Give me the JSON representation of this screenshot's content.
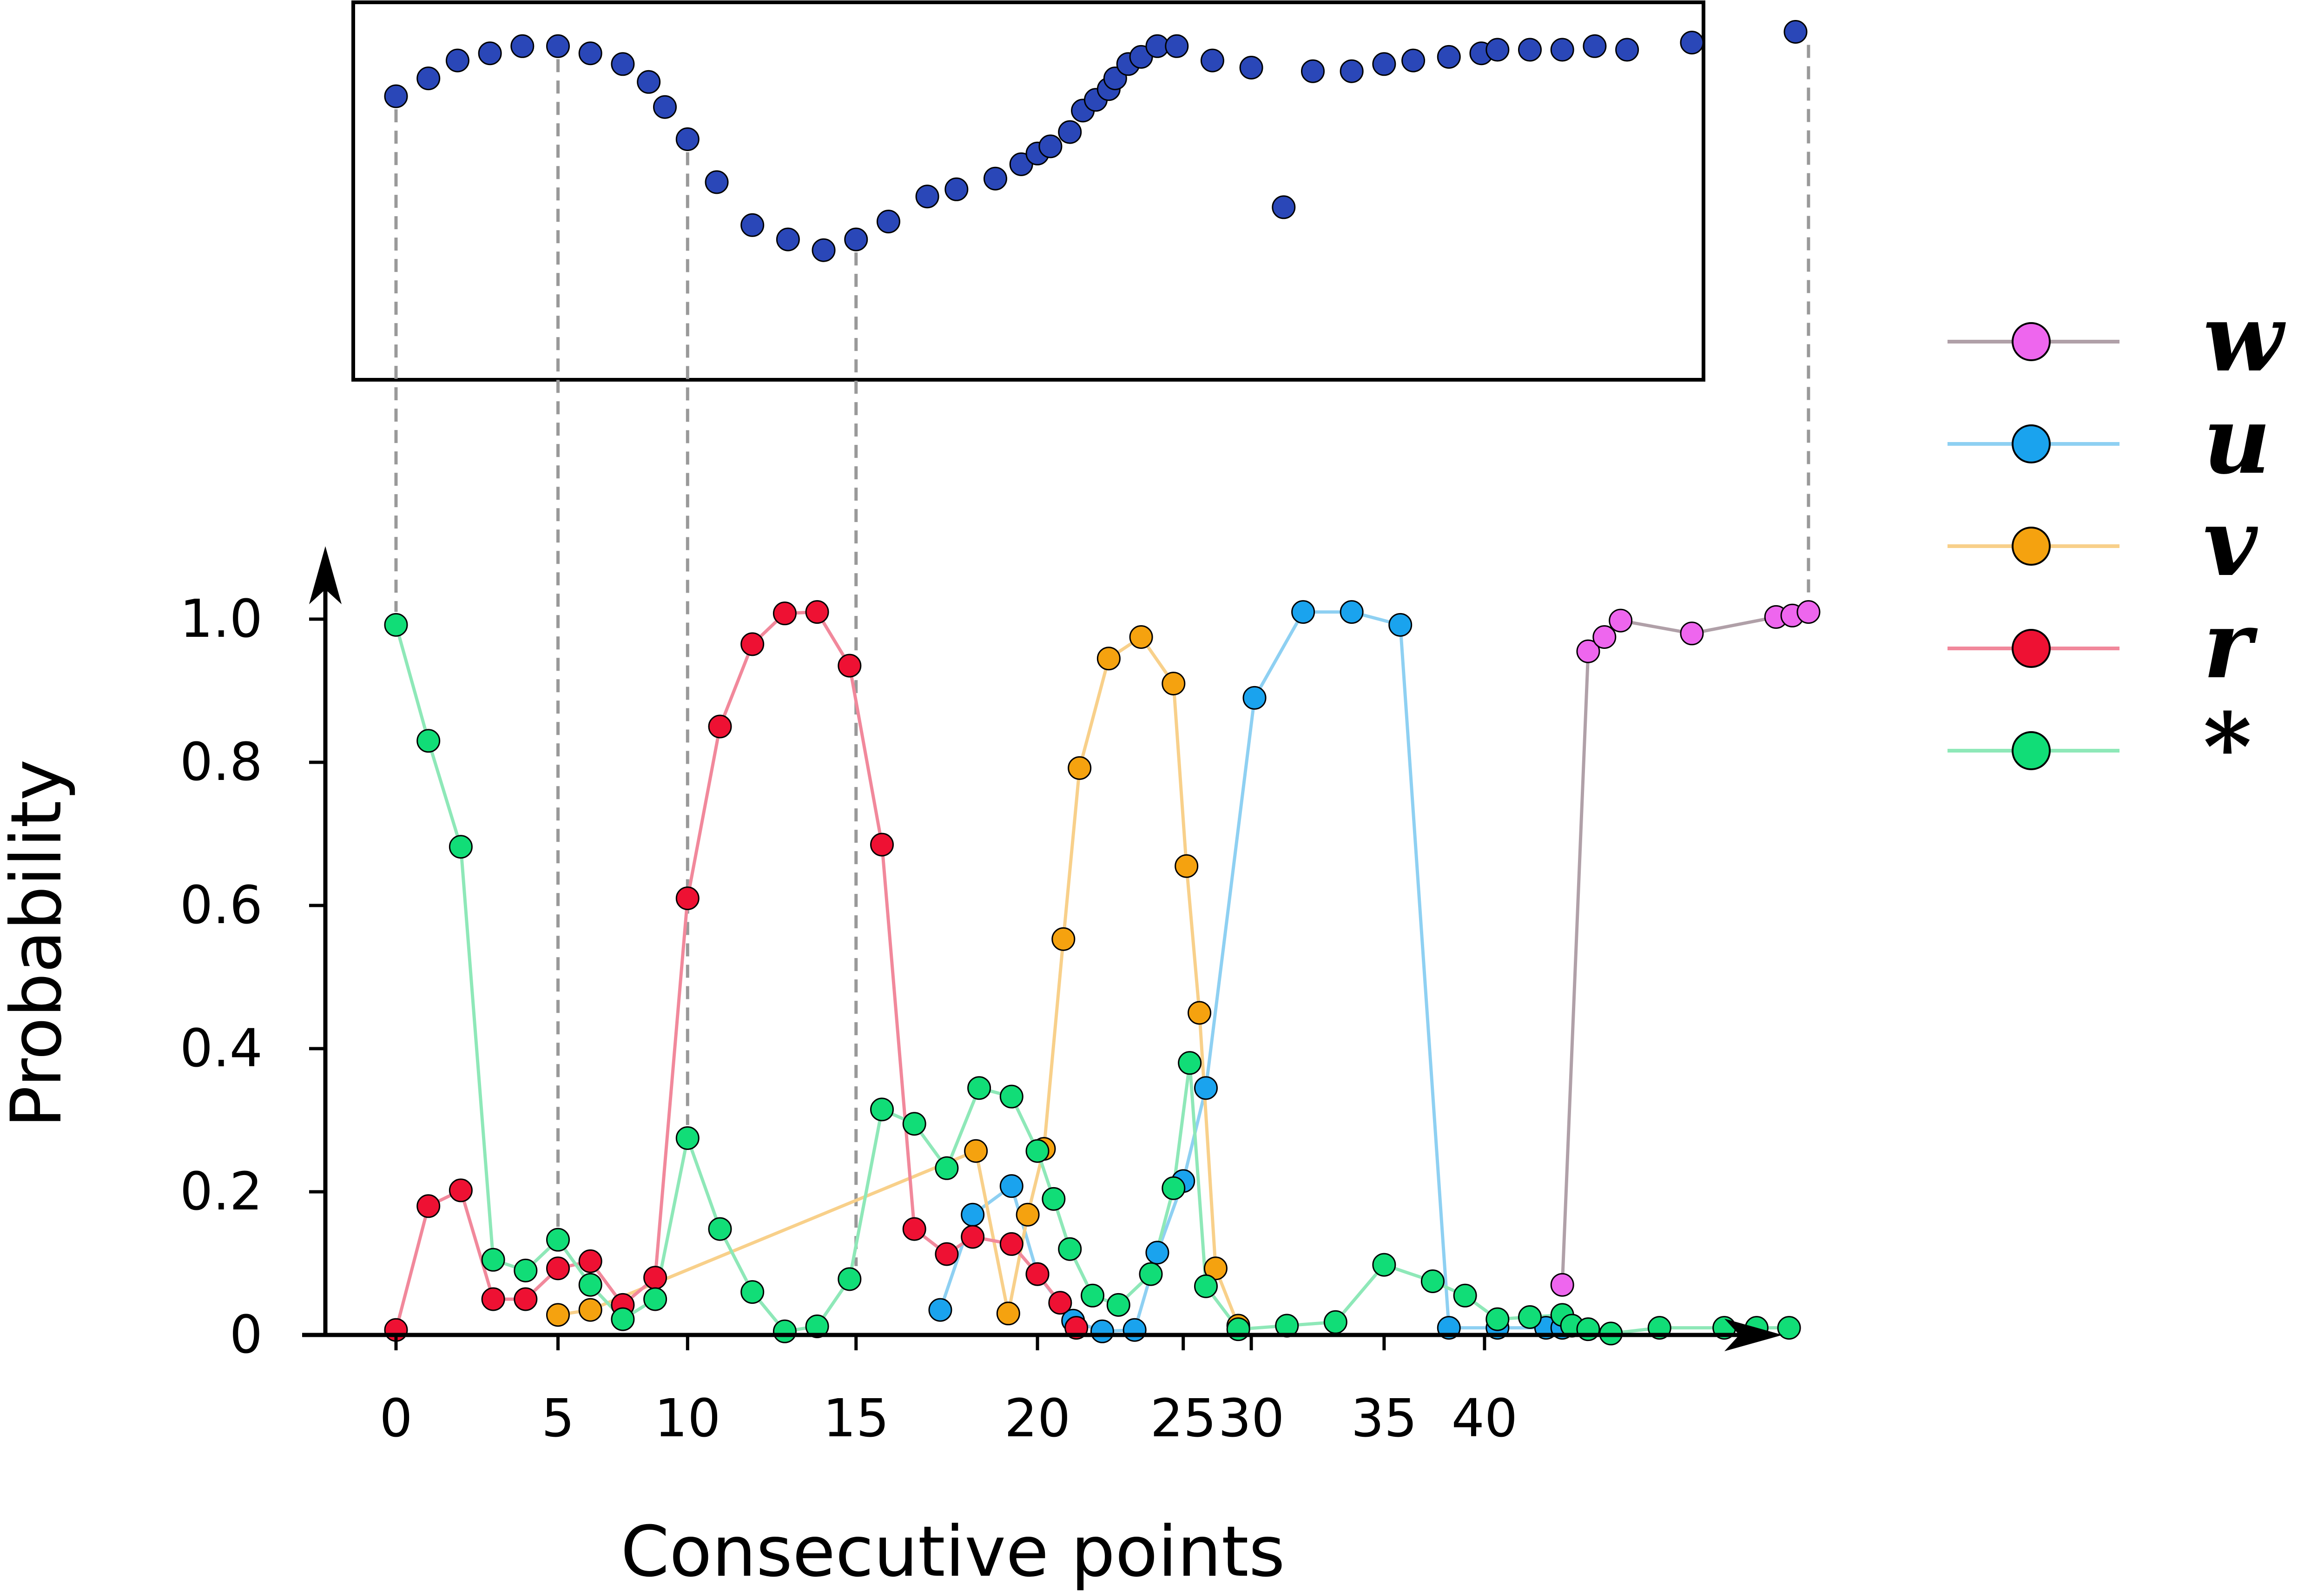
{
  "chart_data": {
    "type": "line",
    "xlabel": "Consecutive points",
    "ylabel": "Probability",
    "xlim": [
      -2.2,
      43.5
    ],
    "ylim": [
      0,
      1.0
    ],
    "x_ticks": [
      0,
      5,
      10,
      15,
      20,
      25,
      30,
      35,
      40
    ],
    "x_tick_labels": [
      "0",
      "5",
      "10",
      "15",
      "20",
      "25",
      "30",
      "35",
      "40"
    ],
    "y_ticks": [
      0,
      0.2,
      0.4,
      0.6,
      0.8,
      1.0
    ],
    "y_tick_labels": [
      "0",
      "0.2",
      "0.4",
      "0.6",
      "0.8",
      "1.0"
    ],
    "legend_position": "right",
    "series": [
      {
        "name": "w",
        "marker_color": "#ee66ee",
        "line_color": "#b0a0a8",
        "legend_line_color": "#b0a0a8",
        "x": [
          36.0,
          36.8,
          37.3,
          37.8,
          40.0,
          42.6,
          43.1,
          43.6
        ],
        "y": [
          0.07,
          0.955,
          0.975,
          0.998,
          0.98,
          1.003,
          1.005,
          1.01
        ]
      },
      {
        "name": "u",
        "marker_color": "#1aa3ee",
        "line_color": "#8ed0f2",
        "legend_line_color": "#8ed0f2",
        "x": [
          16.8,
          17.8,
          19.0,
          19.8,
          20.9,
          21.8,
          22.8,
          23.5,
          24.3,
          25.0,
          26.5,
          28.0,
          29.5,
          31.0,
          32.5,
          34.0,
          35.5,
          36.0
        ],
        "y": [
          0.035,
          0.168,
          0.208,
          0.085,
          0.02,
          0.005,
          0.007,
          0.115,
          0.215,
          0.345,
          0.89,
          1.01,
          1.01,
          0.992,
          0.01,
          0.01,
          0.01,
          0.01
        ]
      },
      {
        "name": "v",
        "marker_color": "#f5a20f",
        "line_color": "#f8d08a",
        "legend_line_color": "#f8d08a",
        "x": [
          5.0,
          6.0,
          17.9,
          18.9,
          19.5,
          20.0,
          20.6,
          21.1,
          22.0,
          23.0,
          24.0,
          24.4,
          24.8,
          25.3,
          26.0
        ],
        "y": [
          0.028,
          0.035,
          0.257,
          0.03,
          0.168,
          0.26,
          0.553,
          0.792,
          0.945,
          0.975,
          0.91,
          0.655,
          0.45,
          0.093,
          0.013
        ]
      },
      {
        "name": "r",
        "marker_color": "#ee1133",
        "line_color": "#f1889b",
        "legend_line_color": "#f1889b",
        "x": [
          0,
          1.0,
          2.0,
          3.0,
          4.0,
          5.0,
          6.0,
          7.0,
          8.0,
          9.0,
          10.0,
          11.0,
          12.0,
          13.0,
          14.0,
          15.0,
          16.0,
          17.0,
          17.8,
          19.0,
          19.8,
          20.5,
          21.0
        ],
        "y": [
          0.007,
          0.18,
          0.202,
          0.05,
          0.05,
          0.093,
          0.103,
          0.042,
          0.08,
          0.61,
          0.85,
          0.965,
          1.008,
          1.01,
          0.935,
          0.685,
          0.148,
          0.113,
          0.137,
          0.127,
          0.085,
          0.045,
          0.01
        ]
      },
      {
        "name": "*",
        "marker_color": "#11dd77",
        "line_color": "#8ee8b8",
        "legend_line_color": "#8ee8b8",
        "x": [
          0,
          1.0,
          2.0,
          3.0,
          4.0,
          5.0,
          6.0,
          7.0,
          8.0,
          9.0,
          10.0,
          11.0,
          12.0,
          13.0,
          14.0,
          15.0,
          16.0,
          17.0,
          18.0,
          19.0,
          19.8,
          20.3,
          20.8,
          21.5,
          22.3,
          23.3,
          24.0,
          24.5,
          25.0,
          26.0,
          27.5,
          29.0,
          30.5,
          32.0,
          33.0,
          34.0,
          35.0,
          36.0,
          36.3,
          36.8,
          37.5,
          39.0,
          41.0,
          42.0,
          43.0
        ],
        "y": [
          0.992,
          0.83,
          0.682,
          0.105,
          0.09,
          0.133,
          0.07,
          0.022,
          0.05,
          0.275,
          0.148,
          0.06,
          0.005,
          0.012,
          0.078,
          0.315,
          0.295,
          0.233,
          0.345,
          0.333,
          0.257,
          0.19,
          0.12,
          0.055,
          0.042,
          0.085,
          0.205,
          0.38,
          0.068,
          0.008,
          0.013,
          0.018,
          0.098,
          0.075,
          0.055,
          0.022,
          0.025,
          0.028,
          0.013,
          0.008,
          0.002,
          0.01,
          0.01,
          0.01,
          0.01
        ]
      }
    ],
    "top_panel": {
      "marker_color": "#2a47b8",
      "points": [
        [
          0,
          0.77
        ],
        [
          1.0,
          0.82
        ],
        [
          1.9,
          0.87
        ],
        [
          2.9,
          0.89
        ],
        [
          3.9,
          0.91
        ],
        [
          5.0,
          0.91
        ],
        [
          6.0,
          0.89
        ],
        [
          7.0,
          0.86
        ],
        [
          7.8,
          0.81
        ],
        [
          8.3,
          0.74
        ],
        [
          9.0,
          0.65
        ],
        [
          9.9,
          0.53
        ],
        [
          11.0,
          0.41
        ],
        [
          12.1,
          0.37
        ],
        [
          13.2,
          0.34
        ],
        [
          14.2,
          0.37
        ],
        [
          15.2,
          0.42
        ],
        [
          16.4,
          0.49
        ],
        [
          17.3,
          0.51
        ],
        [
          18.5,
          0.54
        ],
        [
          19.3,
          0.58
        ],
        [
          19.8,
          0.61
        ],
        [
          20.2,
          0.63
        ],
        [
          20.8,
          0.67
        ],
        [
          21.2,
          0.73
        ],
        [
          21.6,
          0.76
        ],
        [
          22.0,
          0.79
        ],
        [
          22.2,
          0.82
        ],
        [
          22.6,
          0.86
        ],
        [
          23.0,
          0.88
        ],
        [
          23.5,
          0.91
        ],
        [
          24.1,
          0.91
        ],
        [
          25.2,
          0.87
        ],
        [
          26.4,
          0.85
        ],
        [
          27.4,
          0.46
        ],
        [
          28.3,
          0.84
        ],
        [
          29.5,
          0.84
        ],
        [
          30.5,
          0.86
        ],
        [
          31.4,
          0.87
        ],
        [
          32.5,
          0.88
        ],
        [
          33.5,
          0.89
        ],
        [
          34.0,
          0.9
        ],
        [
          35.0,
          0.9
        ],
        [
          36.0,
          0.9
        ],
        [
          37.0,
          0.91
        ],
        [
          38.0,
          0.9
        ],
        [
          40.0,
          0.92
        ],
        [
          43.2,
          0.95
        ]
      ]
    }
  }
}
